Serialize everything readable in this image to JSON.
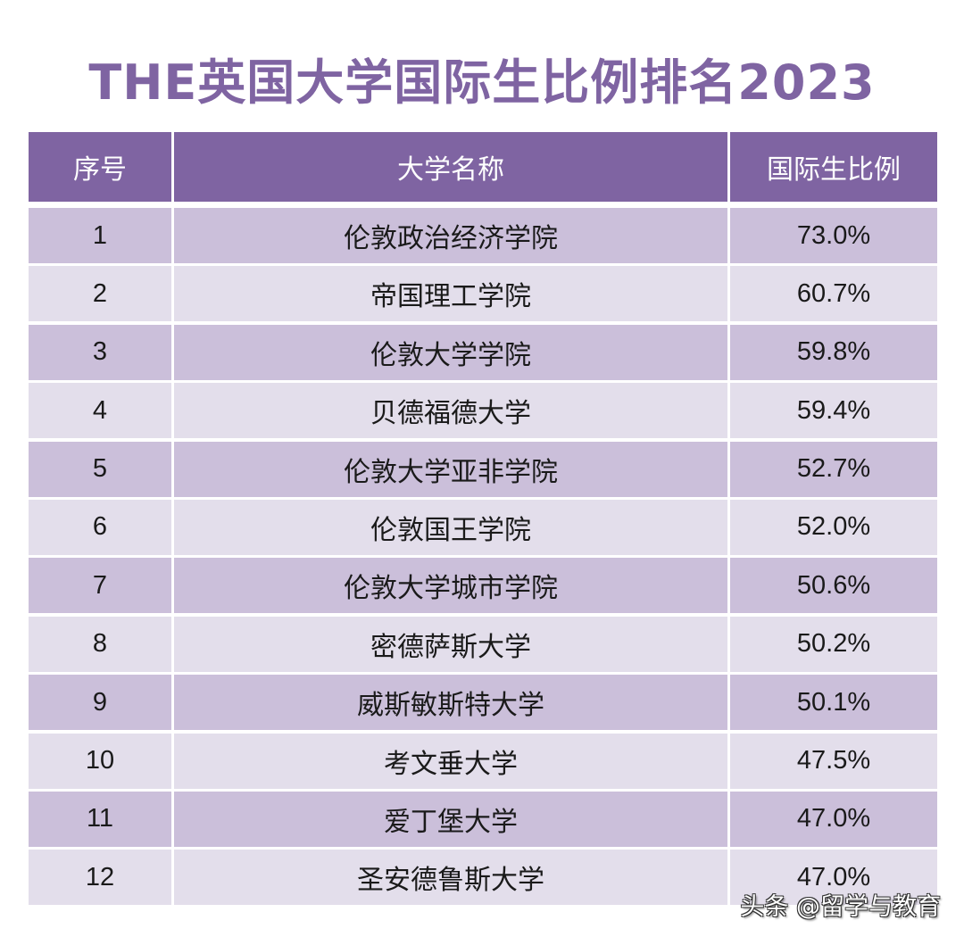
{
  "title": "THE英国大学国际生比例排名2023",
  "colors": {
    "title": "#7f64a2",
    "header_bg": "#7f64a2",
    "row_odd_bg": "#cbbfda",
    "row_even_bg": "#e3deeb"
  },
  "table": {
    "headers": [
      "序号",
      "大学名称",
      "国际生比例"
    ],
    "rows": [
      {
        "rank": "1",
        "name": "伦敦政治经济学院",
        "ratio": "73.0%"
      },
      {
        "rank": "2",
        "name": "帝国理工学院",
        "ratio": "60.7%"
      },
      {
        "rank": "3",
        "name": "伦敦大学学院",
        "ratio": "59.8%"
      },
      {
        "rank": "4",
        "name": "贝德福德大学",
        "ratio": "59.4%"
      },
      {
        "rank": "5",
        "name": "伦敦大学亚非学院",
        "ratio": "52.7%"
      },
      {
        "rank": "6",
        "name": "伦敦国王学院",
        "ratio": "52.0%"
      },
      {
        "rank": "7",
        "name": "伦敦大学城市学院",
        "ratio": "50.6%"
      },
      {
        "rank": "8",
        "name": "密德萨斯大学",
        "ratio": "50.2%"
      },
      {
        "rank": "9",
        "name": "威斯敏斯特大学",
        "ratio": "50.1%"
      },
      {
        "rank": "10",
        "name": "考文垂大学",
        "ratio": "47.5%"
      },
      {
        "rank": "11",
        "name": "爱丁堡大学",
        "ratio": "47.0%"
      },
      {
        "rank": "12",
        "name": "圣安德鲁斯大学",
        "ratio": "47.0%"
      }
    ]
  },
  "watermark": "头条 @留学与教育",
  "chart_data": {
    "type": "table",
    "title": "THE英国大学国际生比例排名2023",
    "columns": [
      "序号",
      "大学名称",
      "国际生比例"
    ],
    "categories": [
      "伦敦政治经济学院",
      "帝国理工学院",
      "伦敦大学学院",
      "贝德福德大学",
      "伦敦大学亚非学院",
      "伦敦国王学院",
      "伦敦大学城市学院",
      "密德萨斯大学",
      "威斯敏斯特大学",
      "考文垂大学",
      "爱丁堡大学",
      "圣安德鲁斯大学"
    ],
    "ranks": [
      1,
      2,
      3,
      4,
      5,
      6,
      7,
      8,
      9,
      10,
      11,
      12
    ],
    "values": [
      73.0,
      60.7,
      59.8,
      59.4,
      52.7,
      52.0,
      50.6,
      50.2,
      50.1,
      47.5,
      47.0,
      47.0
    ],
    "unit": "%"
  }
}
